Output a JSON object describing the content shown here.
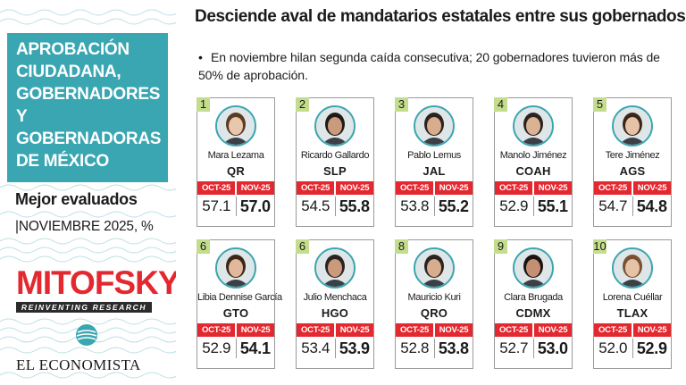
{
  "sidebar": {
    "title_lines": [
      "APROBACIÓN",
      "CIUDADANA,",
      "GOBERNADORES Y",
      "GOBERNADORAS",
      "DE MÉXICO"
    ],
    "best_label": "Mejor evaluados",
    "period": "|NOVIEMBRE 2025, %",
    "brand": "MITOFSKY",
    "brand_tagline": "REINVENTING RESEARCH",
    "publisher": "EL ECONOMISTA"
  },
  "headline": "Desciende aval de mandatarios estatales entre sus gobernados",
  "subhead": {
    "bullet": "•",
    "text": "En noviembre hilan segunda caída consecutiva; 20 gobernadores tuvieron más de 50% de aprobación."
  },
  "columns": {
    "old": "OCT-25",
    "new": "NOV-25"
  },
  "colors": {
    "teal": "#3aa6b1",
    "red": "#e3282f",
    "rank_bg": "#c4dd8c"
  },
  "governors": [
    {
      "rank": "1",
      "name": "Mara Lezama",
      "state": "QR",
      "oct": "57.1",
      "nov": "57.0"
    },
    {
      "rank": "2",
      "name": "Ricardo Gallardo",
      "state": "SLP",
      "oct": "54.5",
      "nov": "55.8"
    },
    {
      "rank": "3",
      "name": "Pablo Lemus",
      "state": "JAL",
      "oct": "53.8",
      "nov": "55.2"
    },
    {
      "rank": "4",
      "name": "Manolo Jiménez",
      "state": "COAH",
      "oct": "52.9",
      "nov": "55.1"
    },
    {
      "rank": "5",
      "name": "Tere Jiménez",
      "state": "AGS",
      "oct": "54.7",
      "nov": "54.8"
    },
    {
      "rank": "6",
      "name": "Libia Dennise García",
      "state": "GTO",
      "oct": "52.9",
      "nov": "54.1"
    },
    {
      "rank": "6",
      "name": "Julio Menchaca",
      "state": "HGO",
      "oct": "53.4",
      "nov": "53.9"
    },
    {
      "rank": "8",
      "name": "Mauricio Kuri",
      "state": "QRO",
      "oct": "52.8",
      "nov": "53.8"
    },
    {
      "rank": "9",
      "name": "Clara Brugada",
      "state": "CDMX",
      "oct": "52.7",
      "nov": "53.0"
    },
    {
      "rank": "10",
      "name": "Lorena Cuéllar",
      "state": "TLAX",
      "oct": "52.0",
      "nov": "52.9"
    }
  ]
}
